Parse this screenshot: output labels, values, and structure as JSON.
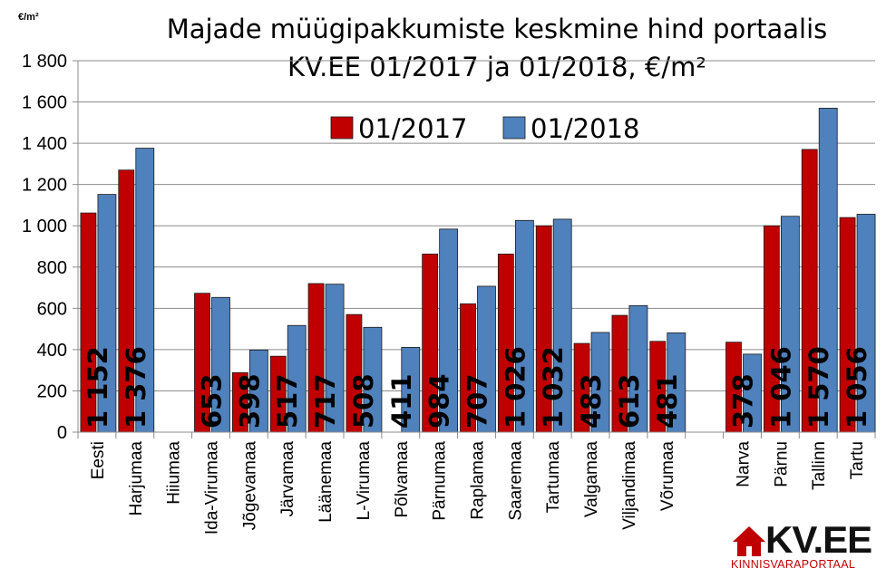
{
  "chart_data": {
    "type": "bar",
    "title": "Majade müügipakkumiste keskmine hind portaalis",
    "subtitle": "KV.EE 01/2017 ja 01/2018, €/m²",
    "unit_label": "€/m²",
    "ylim": [
      0,
      1800
    ],
    "yticks": [
      0,
      200,
      400,
      600,
      800,
      1000,
      1200,
      1400,
      1600,
      1800
    ],
    "ytick_labels": [
      "0",
      "200",
      "400",
      "600",
      "800",
      "1 000",
      "1 200",
      "1 400",
      "1 600",
      "1 800"
    ],
    "grid": true,
    "legend_position": "top-center",
    "categories": [
      "Eesti",
      "Harjumaa",
      "Hiiumaa",
      "Ida-Virumaa",
      "Jõgevamaa",
      "Järvamaa",
      "Läänemaa",
      "L-Virumaa",
      "Põlvamaa",
      "Pärnumaa",
      "Raplamaa",
      "Saaremaa",
      "Tartumaa",
      "Valgamaa",
      "Viljandimaa",
      "Võrumaa",
      "",
      "Narva",
      "Pärnu",
      "Tallinn",
      "Tartu"
    ],
    "series": [
      {
        "name": "01/2017",
        "color": "#c00000",
        "values": [
          1062,
          1270,
          null,
          673,
          288,
          368,
          720,
          570,
          null,
          863,
          622,
          863,
          1000,
          430,
          566,
          440,
          null,
          436,
          1000,
          1370,
          1040
        ]
      },
      {
        "name": "01/2018",
        "color": "#4f81bd",
        "values": [
          1152,
          1376,
          null,
          653,
          398,
          517,
          717,
          508,
          411,
          984,
          707,
          1026,
          1032,
          483,
          613,
          481,
          null,
          378,
          1046,
          1570,
          1056
        ],
        "data_labels": [
          "1 152",
          "1 376",
          "",
          "653",
          "398",
          "517",
          "717",
          "508",
          "411",
          "984",
          "707",
          "1 026",
          "1 032",
          "483",
          "613",
          "481",
          "",
          "378",
          "1 046",
          "1 570",
          "1 056"
        ]
      }
    ]
  },
  "logo": {
    "text": "KV.EE",
    "subtext": "KINNISVARAPORTAAL",
    "color": "#c00000"
  }
}
